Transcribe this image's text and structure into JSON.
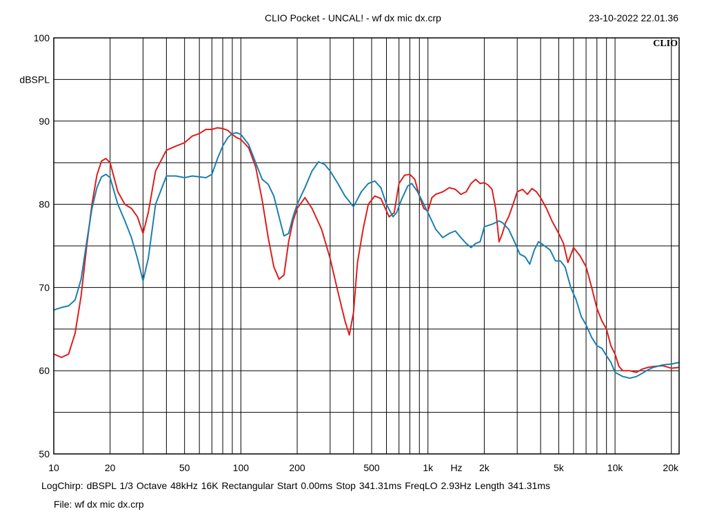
{
  "header": {
    "title": "CLIO Pocket - UNCAL! - wf dx mic dx.crp",
    "timestamp": "23-10-2022 22.01.36"
  },
  "brand": "CLIO",
  "footer": {
    "settings": "LogChirp:  dBSPL   1/3 Octave   48kHz   16K   Rectangular    Start 0.00ms     Stop 341.31ms     FreqLO 2.93Hz     Length 341.31ms",
    "file": "File: wf dx mic dx.crp"
  },
  "colors": {
    "red_trace": "#dd1c1c",
    "blue_trace": "#1a7fad",
    "grid": "#000000"
  },
  "chart_data": {
    "type": "line",
    "title": "CLIO Pocket - UNCAL! - wf dx mic dx.crp",
    "xlabel": "Hz",
    "ylabel": "dBSPL",
    "xscale": "log",
    "xlim": [
      10,
      22000
    ],
    "ylim": [
      50,
      100
    ],
    "grid": true,
    "x_tick_labels": [
      {
        "v": 10,
        "t": "10"
      },
      {
        "v": 20,
        "t": "20"
      },
      {
        "v": 50,
        "t": "50"
      },
      {
        "v": 100,
        "t": "100"
      },
      {
        "v": 200,
        "t": "200"
      },
      {
        "v": 500,
        "t": "500"
      },
      {
        "v": 1000,
        "t": "1k"
      },
      {
        "v": 2000,
        "t": "2k"
      },
      {
        "v": 5000,
        "t": "5k"
      },
      {
        "v": 10000,
        "t": "10k"
      },
      {
        "v": 20000,
        "t": "20k"
      }
    ],
    "y_tick_labels": [
      {
        "v": 50,
        "t": "50"
      },
      {
        "v": 60,
        "t": "60"
      },
      {
        "v": 70,
        "t": "70"
      },
      {
        "v": 80,
        "t": "80"
      },
      {
        "v": 90,
        "t": "90"
      },
      {
        "v": 100,
        "t": "100"
      }
    ],
    "series": [
      {
        "color": "#dd1c1c",
        "points": [
          [
            10,
            62
          ],
          [
            11,
            61.6
          ],
          [
            12,
            62
          ],
          [
            13,
            64.5
          ],
          [
            14,
            69
          ],
          [
            15,
            75
          ],
          [
            16,
            80
          ],
          [
            17,
            83.5
          ],
          [
            18,
            85.2
          ],
          [
            19,
            85.5
          ],
          [
            20,
            85
          ],
          [
            22,
            81.5
          ],
          [
            24,
            80
          ],
          [
            26,
            79.5
          ],
          [
            28,
            78.5
          ],
          [
            30,
            76.5
          ],
          [
            32,
            79
          ],
          [
            35,
            84
          ],
          [
            40,
            86.5
          ],
          [
            45,
            87
          ],
          [
            50,
            87.4
          ],
          [
            55,
            88.2
          ],
          [
            60,
            88.5
          ],
          [
            65,
            89
          ],
          [
            70,
            89
          ],
          [
            75,
            89.2
          ],
          [
            80,
            89.1
          ],
          [
            85,
            88.9
          ],
          [
            90,
            88.4
          ],
          [
            95,
            88
          ],
          [
            100,
            87.8
          ],
          [
            110,
            86.8
          ],
          [
            120,
            84.5
          ],
          [
            130,
            80.5
          ],
          [
            140,
            76
          ],
          [
            150,
            72.5
          ],
          [
            160,
            71
          ],
          [
            170,
            71.5
          ],
          [
            180,
            75.5
          ],
          [
            190,
            78
          ],
          [
            200,
            79.5
          ],
          [
            220,
            80.8
          ],
          [
            240,
            79.5
          ],
          [
            270,
            77
          ],
          [
            300,
            73.5
          ],
          [
            330,
            69.5
          ],
          [
            360,
            66
          ],
          [
            380,
            64.3
          ],
          [
            400,
            67
          ],
          [
            420,
            73
          ],
          [
            450,
            77
          ],
          [
            480,
            80
          ],
          [
            520,
            81
          ],
          [
            560,
            80.7
          ],
          [
            620,
            78.5
          ],
          [
            660,
            79
          ],
          [
            700,
            82.5
          ],
          [
            750,
            83.5
          ],
          [
            800,
            83.6
          ],
          [
            850,
            83
          ],
          [
            900,
            81
          ],
          [
            950,
            79.5
          ],
          [
            1000,
            79.2
          ],
          [
            1050,
            80.8
          ],
          [
            1100,
            81.2
          ],
          [
            1200,
            81.5
          ],
          [
            1300,
            82
          ],
          [
            1400,
            81.8
          ],
          [
            1500,
            81.2
          ],
          [
            1600,
            81.5
          ],
          [
            1700,
            82.5
          ],
          [
            1800,
            83
          ],
          [
            1900,
            82.5
          ],
          [
            2000,
            82.6
          ],
          [
            2100,
            82.3
          ],
          [
            2200,
            81.8
          ],
          [
            2300,
            79.5
          ],
          [
            2400,
            75.5
          ],
          [
            2500,
            76.5
          ],
          [
            2600,
            77.8
          ],
          [
            2700,
            78.5
          ],
          [
            2800,
            79.5
          ],
          [
            2900,
            80.5
          ],
          [
            3000,
            81.5
          ],
          [
            3200,
            81.8
          ],
          [
            3400,
            81.2
          ],
          [
            3600,
            81.9
          ],
          [
            3800,
            81.5
          ],
          [
            4000,
            80.8
          ],
          [
            4300,
            79.5
          ],
          [
            4600,
            78
          ],
          [
            5000,
            76.5
          ],
          [
            5300,
            75.3
          ],
          [
            5600,
            73
          ],
          [
            6000,
            74.8
          ],
          [
            6500,
            73.8
          ],
          [
            7000,
            72.5
          ],
          [
            7500,
            70
          ],
          [
            8000,
            67.5
          ],
          [
            8500,
            66
          ],
          [
            9000,
            65
          ],
          [
            9500,
            63
          ],
          [
            10000,
            62
          ],
          [
            10500,
            60.5
          ],
          [
            11000,
            60
          ],
          [
            12000,
            60
          ],
          [
            13000,
            59.8
          ],
          [
            14000,
            60.2
          ],
          [
            15000,
            60.4
          ],
          [
            16000,
            60.5
          ],
          [
            18000,
            60.6
          ],
          [
            20000,
            60.3
          ],
          [
            22000,
            60.4
          ]
        ]
      },
      {
        "color": "#1a7fad",
        "points": [
          [
            10,
            67.3
          ],
          [
            11,
            67.6
          ],
          [
            12,
            67.8
          ],
          [
            13,
            68.5
          ],
          [
            14,
            71
          ],
          [
            15,
            75.5
          ],
          [
            16,
            79.5
          ],
          [
            17,
            82
          ],
          [
            18,
            83.3
          ],
          [
            19,
            83.6
          ],
          [
            20,
            83.2
          ],
          [
            22,
            80
          ],
          [
            24,
            78
          ],
          [
            26,
            76
          ],
          [
            28,
            73.5
          ],
          [
            30,
            70.8
          ],
          [
            32,
            73.5
          ],
          [
            35,
            80
          ],
          [
            40,
            83.4
          ],
          [
            45,
            83.4
          ],
          [
            50,
            83.2
          ],
          [
            55,
            83.4
          ],
          [
            60,
            83.3
          ],
          [
            65,
            83.2
          ],
          [
            70,
            83.6
          ],
          [
            75,
            85.5
          ],
          [
            80,
            87
          ],
          [
            85,
            88
          ],
          [
            90,
            88.5
          ],
          [
            95,
            88.6
          ],
          [
            100,
            88.4
          ],
          [
            110,
            87.2
          ],
          [
            120,
            85
          ],
          [
            130,
            83
          ],
          [
            140,
            82.4
          ],
          [
            150,
            81
          ],
          [
            160,
            78.5
          ],
          [
            170,
            76.2
          ],
          [
            180,
            76.5
          ],
          [
            190,
            78.5
          ],
          [
            200,
            80
          ],
          [
            220,
            82
          ],
          [
            240,
            84
          ],
          [
            260,
            85.1
          ],
          [
            280,
            84.8
          ],
          [
            300,
            84
          ],
          [
            330,
            82.5
          ],
          [
            360,
            81
          ],
          [
            400,
            79.7
          ],
          [
            440,
            81.5
          ],
          [
            480,
            82.5
          ],
          [
            520,
            82.8
          ],
          [
            560,
            82
          ],
          [
            600,
            80
          ],
          [
            650,
            78.5
          ],
          [
            680,
            79
          ],
          [
            720,
            80.5
          ],
          [
            780,
            82.2
          ],
          [
            820,
            82.5
          ],
          [
            880,
            81.5
          ],
          [
            950,
            80
          ],
          [
            1000,
            79
          ],
          [
            1100,
            77
          ],
          [
            1200,
            76
          ],
          [
            1300,
            76.5
          ],
          [
            1400,
            76.8
          ],
          [
            1500,
            76
          ],
          [
            1600,
            75.3
          ],
          [
            1700,
            74.8
          ],
          [
            1800,
            75.3
          ],
          [
            1900,
            75.5
          ],
          [
            2000,
            77.3
          ],
          [
            2200,
            77.6
          ],
          [
            2400,
            78
          ],
          [
            2500,
            77.8
          ],
          [
            2700,
            77
          ],
          [
            2900,
            75.5
          ],
          [
            3100,
            74
          ],
          [
            3300,
            73.7
          ],
          [
            3500,
            72.8
          ],
          [
            3700,
            74.5
          ],
          [
            3900,
            75.5
          ],
          [
            4200,
            75
          ],
          [
            4500,
            74.5
          ],
          [
            4800,
            73.2
          ],
          [
            5100,
            73.2
          ],
          [
            5400,
            72.5
          ],
          [
            5800,
            70
          ],
          [
            6200,
            68.5
          ],
          [
            6600,
            66.5
          ],
          [
            7000,
            65.5
          ],
          [
            7500,
            64
          ],
          [
            8000,
            63
          ],
          [
            8500,
            62.7
          ],
          [
            9000,
            61.8
          ],
          [
            9500,
            61
          ],
          [
            10000,
            59.8
          ],
          [
            11000,
            59.3
          ],
          [
            12000,
            59.1
          ],
          [
            13000,
            59.3
          ],
          [
            14000,
            59.7
          ],
          [
            15000,
            60.1
          ],
          [
            16000,
            60.4
          ],
          [
            18000,
            60.7
          ],
          [
            20000,
            60.8
          ],
          [
            22000,
            61
          ]
        ]
      }
    ]
  }
}
